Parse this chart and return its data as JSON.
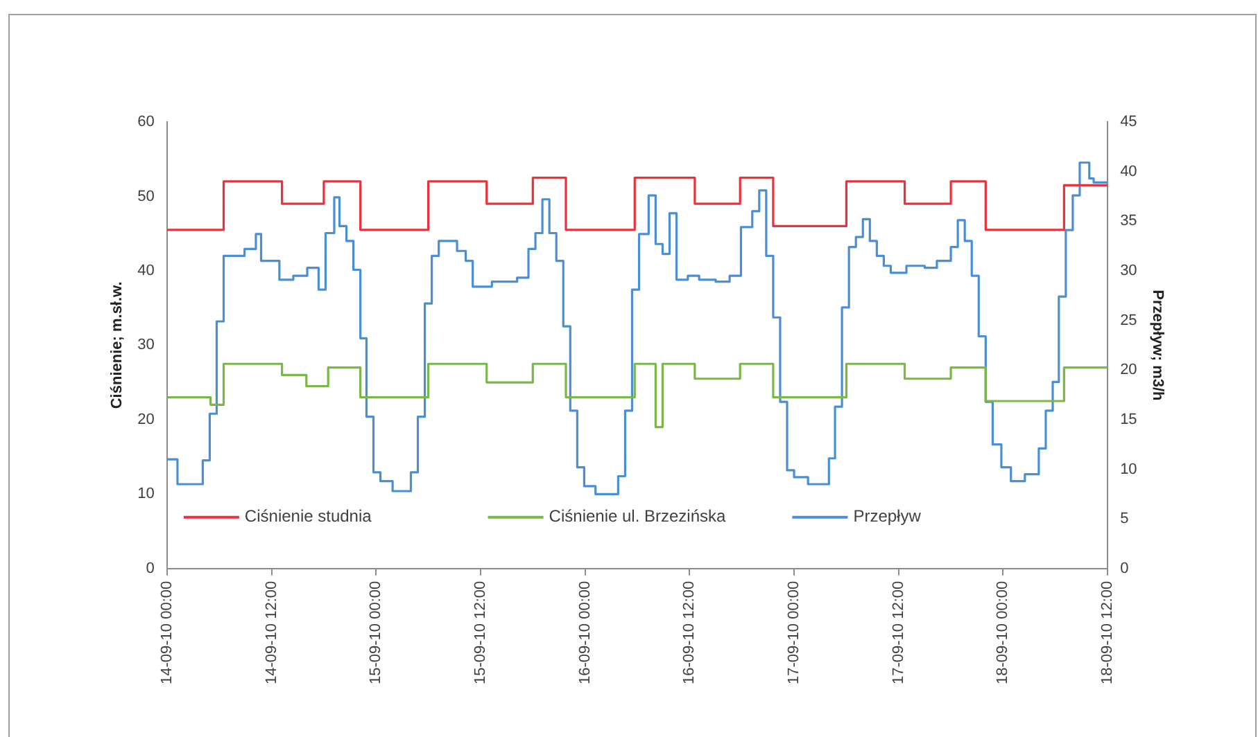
{
  "chart_data": {
    "type": "step",
    "ylabel": "Ciśnienie; m.sł.w.",
    "y2label": "Przepływ; m3/h",
    "xlim": [
      "--09-14T00:00",
      "--09-18T12:00"
    ],
    "xticks": [
      {
        "value": "--09-14T00:00",
        "label": "14-09-10 00:00"
      },
      {
        "value": "--09-14T12:00",
        "label": "14-09-10 12:00"
      },
      {
        "value": "--09-15T00:00",
        "label": "15-09-10 00:00"
      },
      {
        "value": "--09-15T12:00",
        "label": "15-09-10 12:00"
      },
      {
        "value": "--09-16T00:00",
        "label": "16-09-10 00:00"
      },
      {
        "value": "--09-16T12:00",
        "label": "16-09-10 12:00"
      },
      {
        "value": "--09-17T00:00",
        "label": "17-09-10 00:00"
      },
      {
        "value": "--09-17T12:00",
        "label": "17-09-10 12:00"
      },
      {
        "value": "--09-18T00:00",
        "label": "18-09-10 00:00"
      },
      {
        "value": "--09-18T12:00",
        "label": "18-09-10 12:00"
      }
    ],
    "ylim": [
      0,
      60
    ],
    "yticks": [
      0,
      10,
      20,
      30,
      40,
      50,
      60
    ],
    "y2lim": [
      0,
      45
    ],
    "y2ticks": [
      0,
      5,
      10,
      15,
      20,
      25,
      30,
      35,
      40,
      45
    ],
    "grid": false,
    "legend": "bottom",
    "series": [
      {
        "name": "Ciśnienie studnia",
        "color": "#e8323c",
        "x": [
          "--09-14T00:00",
          "--09-14T06:30",
          "--09-14T13:12",
          "--09-14T18:00",
          "--09-14T22:12",
          "--09-15T06:00",
          "--09-15T12:42",
          "--09-15T18:00",
          "--09-15T21:48",
          "--09-16T05:42",
          "--09-16T12:36",
          "--09-16T17:48",
          "--09-16T21:36",
          "--09-17T06:00",
          "--09-17T12:42",
          "--09-17T18:00",
          "--09-17T22:00",
          "--09-18T07:00",
          "--09-18T12:00"
        ],
        "values": [
          45.5,
          52,
          49,
          52,
          45.5,
          52,
          49,
          52.5,
          45.5,
          52.5,
          49,
          52.5,
          46,
          52,
          49,
          52,
          45.5,
          51.5,
          51.5
        ]
      },
      {
        "name": "Ciśnienie ul. Brzezińska",
        "color": "#7ab648",
        "x": [
          "--09-14T00:00",
          "--09-14T05:00",
          "--09-14T06:30",
          "--09-14T13:12",
          "--09-14T16:00",
          "--09-14T18:30",
          "--09-14T22:12",
          "--09-15T06:00",
          "--09-15T12:42",
          "--09-15T18:00",
          "--09-15T21:48",
          "--09-16T05:42",
          "--09-16T08:06",
          "--09-16T08:54",
          "--09-16T12:36",
          "--09-16T17:48",
          "--09-16T21:36",
          "--09-17T06:00",
          "--09-17T12:42",
          "--09-17T18:00",
          "--09-17T22:00",
          "--09-18T07:00",
          "--09-18T12:00"
        ],
        "values": [
          23,
          22,
          27.5,
          26,
          24.5,
          27,
          23,
          27.5,
          25,
          27.5,
          23,
          27.5,
          19,
          27.5,
          25.5,
          27.5,
          23,
          27.5,
          25.5,
          27,
          22.5,
          27,
          27
        ]
      },
      {
        "name": "Przepływ",
        "color": "#4a8fd4",
        "axis": "y2",
        "x": [
          "--09-14T00:00",
          "--09-14T01:12",
          "--09-14T04:06",
          "--09-14T04:54",
          "--09-14T05:42",
          "--09-14T06:30",
          "--09-14T08:54",
          "--09-14T10:12",
          "--09-14T10:48",
          "--09-14T12:54",
          "--09-14T14:30",
          "--09-14T16:06",
          "--09-14T17:24",
          "--09-14T18:12",
          "--09-14T19:12",
          "--09-14T19:48",
          "--09-14T20:36",
          "--09-14T21:24",
          "--09-14T22:12",
          "--09-14T22:54",
          "--09-14T23:42",
          "--09-15T00:30",
          "--09-15T01:54",
          "--09-15T04:00",
          "--09-15T04:48",
          "--09-15T05:36",
          "--09-15T06:24",
          "--09-15T07:12",
          "--09-15T09:18",
          "--09-15T10:18",
          "--09-15T11:06",
          "--09-15T13:18",
          "--09-15T16:12",
          "--09-15T17:30",
          "--09-15T18:18",
          "--09-15T19:06",
          "--09-15T19:54",
          "--09-15T20:42",
          "--09-15T21:30",
          "--09-15T22:18",
          "--09-15T23:06",
          "--09-15T23:54",
          "--09-16T01:12",
          "--09-16T03:48",
          "--09-16T04:36",
          "--09-16T05:24",
          "--09-16T06:12",
          "--09-16T07:18",
          "--09-16T08:06",
          "--09-16T08:54",
          "--09-16T09:42",
          "--09-16T10:30",
          "--09-16T11:48",
          "--09-16T13:06",
          "--09-16T15:00",
          "--09-16T16:36",
          "--09-16T17:54",
          "--09-16T19:12",
          "--09-16T20:00",
          "--09-16T20:48",
          "--09-16T21:36",
          "--09-16T22:24",
          "--09-16T23:12",
          "--09-17T00:00",
          "--09-17T01:36",
          "--09-17T04:00",
          "--09-17T04:42",
          "--09-17T05:30",
          "--09-17T06:18",
          "--09-17T07:06",
          "--09-17T07:54",
          "--09-17T08:42",
          "--09-17T09:30",
          "--09-17T10:18",
          "--09-17T11:06",
          "--09-17T12:54",
          "--09-17T15:00",
          "--09-17T16:24",
          "--09-17T18:00",
          "--09-17T18:48",
          "--09-17T19:36",
          "--09-17T20:24",
          "--09-17T21:12",
          "--09-17T22:00",
          "--09-17T22:48",
          "--09-17T23:48",
          "--09-18T00:54",
          "--09-18T02:30",
          "--09-18T04:06",
          "--09-18T04:54",
          "--09-18T05:42",
          "--09-18T06:24",
          "--09-18T07:12",
          "--09-18T08:00",
          "--09-18T08:48",
          "--09-18T09:54",
          "--09-18T10:24",
          "--09-18T12:00"
        ],
        "values": [
          11,
          8.5,
          10.9,
          15.6,
          24.9,
          31.5,
          32.2,
          33.7,
          31,
          29.1,
          29.5,
          30.3,
          28.1,
          33.8,
          37.4,
          34.5,
          33,
          30.1,
          23.2,
          15.3,
          9.7,
          8.8,
          7.8,
          9.7,
          15.3,
          26.7,
          31.5,
          33,
          32,
          31,
          28.4,
          28.9,
          29.3,
          32.2,
          33.8,
          37.2,
          33.8,
          31,
          24.4,
          15.9,
          10.2,
          8.3,
          7.5,
          9.3,
          15.9,
          28.1,
          33.7,
          37.6,
          32.7,
          31.7,
          35.8,
          29.1,
          29.5,
          29.1,
          28.9,
          29.5,
          34.4,
          36,
          38.1,
          31.5,
          25.3,
          16.8,
          9.9,
          9.2,
          8.5,
          11.1,
          16.3,
          26.3,
          32.4,
          33.4,
          35.2,
          33,
          31.5,
          30.5,
          29.8,
          30.5,
          30.3,
          31,
          32.4,
          35.1,
          33,
          29.5,
          23.4,
          16.8,
          12.5,
          10.2,
          8.8,
          9.5,
          12.1,
          15.9,
          18.8,
          27.4,
          34.1,
          37.6,
          40.9,
          39.3,
          38.9,
          38.9
        ]
      }
    ]
  }
}
